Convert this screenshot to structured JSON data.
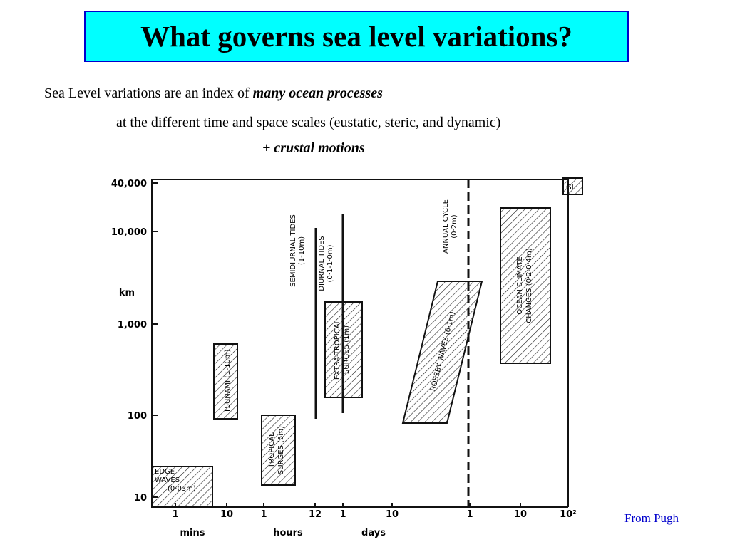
{
  "header": {
    "title": "What governs sea level variations?",
    "line1": {
      "text": "Sea Level variations are an index of ",
      "emphasis": "many ocean processes"
    },
    "line2": "at the different time and space scales (eustatic, steric, and dynamic)",
    "line3": "+ crustal motions"
  },
  "figure": {
    "y_axis": {
      "unit": "km",
      "ticks": [
        "40,000",
        "10,000",
        "1,000",
        "100",
        "10"
      ]
    },
    "x_axis": {
      "ticks": [
        "1",
        "10",
        "1",
        "12",
        "1",
        "10",
        "1",
        "10",
        "10²"
      ],
      "groups": [
        "mins",
        "hours",
        "days"
      ]
    },
    "regions": [
      {
        "lines": [
          "EDGE",
          "WAVES",
          "(0·03m)"
        ]
      },
      {
        "lines": [
          "TSUNAMI (1-10m)"
        ]
      },
      {
        "lines": [
          "TROPICAL",
          "SURGES (5m)"
        ]
      },
      {
        "lines": [
          "EXTRA-TROPICAL",
          "SURGES (1m)"
        ]
      },
      {
        "lines": [
          "ROSSBY WAVES (0·1m)"
        ]
      },
      {
        "lines": [
          "OCEAN CLIMATE",
          "CHANGES (0·2-0·4m)"
        ]
      },
      {
        "lines": [
          "GL"
        ]
      }
    ],
    "tides": [
      {
        "lines": [
          "SEMIDIURNAL TIDES",
          "(1-10m)"
        ]
      },
      {
        "lines": [
          "DIURNAL TIDES",
          "(0·1-1·0m)"
        ]
      },
      {
        "lines": [
          "ANNUAL CYCLE",
          "(0·2m)"
        ]
      }
    ],
    "source": "From Pugh"
  }
}
